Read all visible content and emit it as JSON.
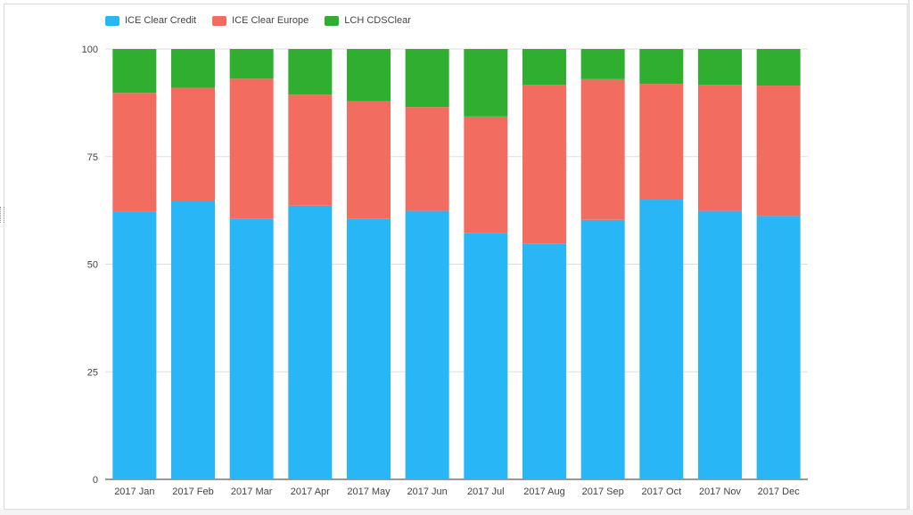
{
  "chart_data": {
    "type": "bar",
    "stacked": true,
    "categories": [
      "2017 Jan",
      "2017 Feb",
      "2017 Mar",
      "2017 Apr",
      "2017 May",
      "2017 Jun",
      "2017 Jul",
      "2017 Aug",
      "2017 Sep",
      "2017 Oct",
      "2017 Nov",
      "2017 Dec"
    ],
    "series": [
      {
        "name": "ICE Clear Credit",
        "color": "#29b6f6",
        "values": [
          62.2,
          64.8,
          60.5,
          63.6,
          60.5,
          62.4,
          57.2,
          54.8,
          60.3,
          65.0,
          62.4,
          61.2
        ]
      },
      {
        "name": "ICE Clear Europe",
        "color": "#f26d60",
        "values": [
          27.6,
          26.2,
          32.6,
          25.8,
          27.4,
          24.1,
          27.1,
          36.9,
          32.7,
          26.9,
          29.3,
          30.3
        ]
      },
      {
        "name": "LCH CDSClear",
        "color": "#2fae2f",
        "values": [
          10.2,
          9.0,
          6.9,
          10.6,
          12.1,
          13.5,
          15.7,
          8.3,
          7.0,
          8.1,
          8.3,
          8.5
        ]
      }
    ],
    "ylim": [
      0,
      100
    ],
    "yticks": [
      "0",
      "25",
      "50",
      "75",
      "100"
    ],
    "grid": true,
    "legend_position": "top-left"
  }
}
